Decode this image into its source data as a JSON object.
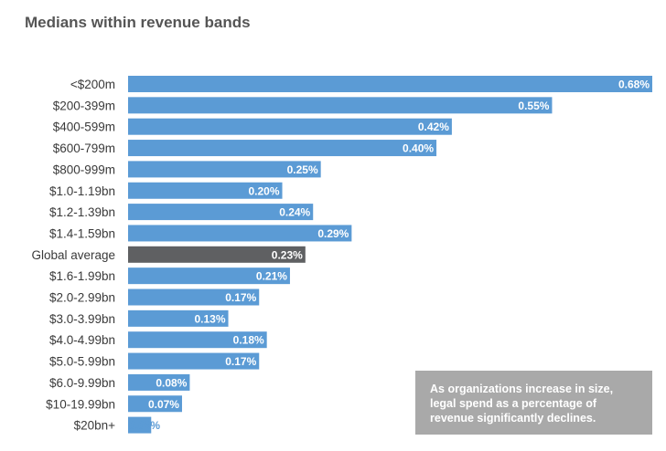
{
  "chart_data": {
    "type": "bar",
    "orientation": "horizontal",
    "title": "Medians within revenue bands",
    "categories": [
      "<$200m",
      "$200-399m",
      "$400-599m",
      "$600-799m",
      "$800-999m",
      "$1.0-1.19bn",
      "$1.2-1.39bn",
      "$1.4-1.59bn",
      "Global average",
      "$1.6-1.99bn",
      "$2.0-2.99bn",
      "$3.0-3.99bn",
      "$4.0-4.99bn",
      "$5.0-5.99bn",
      "$6.0-9.99bn",
      "$10-19.99bn",
      "$20bn+"
    ],
    "values": [
      0.68,
      0.55,
      0.42,
      0.4,
      0.25,
      0.2,
      0.24,
      0.29,
      0.23,
      0.21,
      0.17,
      0.13,
      0.18,
      0.17,
      0.08,
      0.07,
      0.03
    ],
    "value_labels": [
      "0.68%",
      "0.55%",
      "0.42%",
      "0.40%",
      "0.25%",
      "0.20%",
      "0.24%",
      "0.29%",
      "0.23%",
      "0.21%",
      "0.17%",
      "0.13%",
      "0.18%",
      "0.17%",
      "0.08%",
      "0.07%",
      "0.03%"
    ],
    "highlight_category": "Global average",
    "xlim": [
      0,
      0.68
    ],
    "grid": false,
    "colors": {
      "bar": "#5b9bd5",
      "highlight_bar": "#5f6062",
      "callout_bg": "#a9a9a9"
    }
  },
  "callout": {
    "lines": [
      "As organizations increase in size,",
      "legal spend as a percentage of",
      "revenue significantly declines."
    ]
  }
}
